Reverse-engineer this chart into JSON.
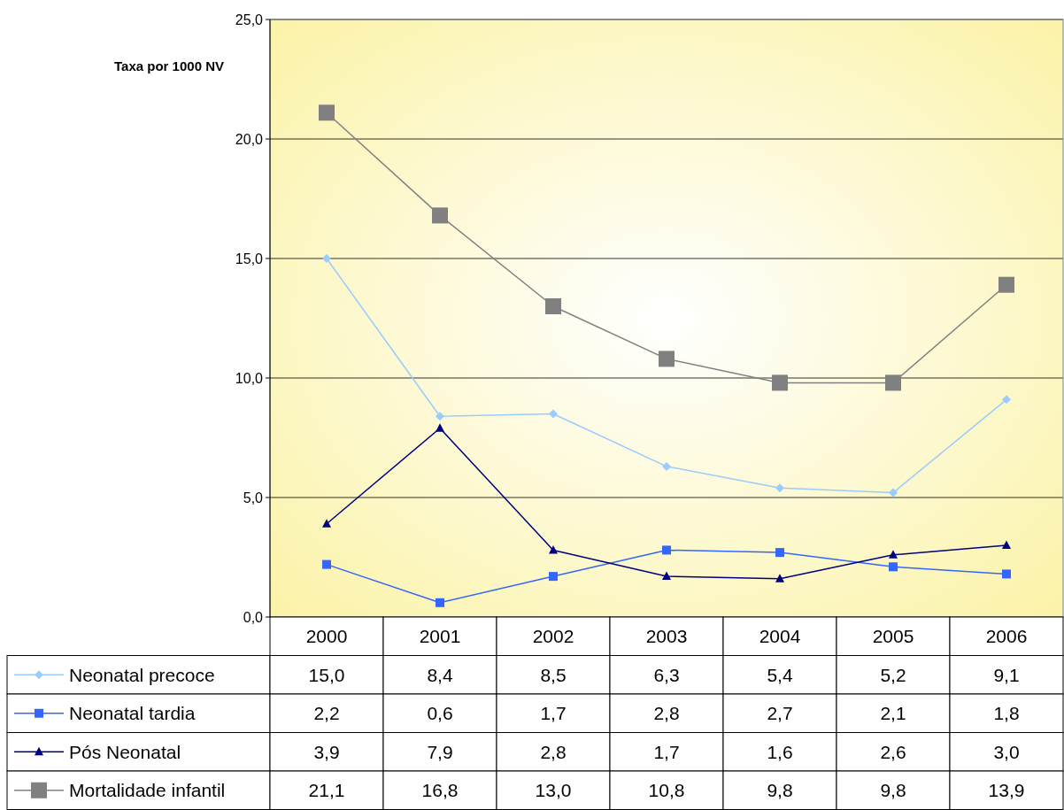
{
  "chart_data": {
    "type": "line",
    "ylabel": "Taxa por 1000 NV",
    "categories": [
      "2000",
      "2001",
      "2002",
      "2003",
      "2004",
      "2005",
      "2006"
    ],
    "ylim": [
      0,
      25
    ],
    "yticks": [
      {
        "value": 0,
        "label": "0,0"
      },
      {
        "value": 5,
        "label": "5,0"
      },
      {
        "value": 10,
        "label": "10,0"
      },
      {
        "value": 15,
        "label": "15,0"
      },
      {
        "value": 20,
        "label": "20,0"
      },
      {
        "value": 25,
        "label": "25,0"
      }
    ],
    "grid": "y",
    "legend": "bottom",
    "series": [
      {
        "name": "Neonatal precoce",
        "color": "#99ccff",
        "marker": "diamond",
        "values": [
          15.0,
          8.4,
          8.5,
          6.3,
          5.4,
          5.2,
          9.1
        ],
        "value_labels": [
          "15,0",
          "8,4",
          "8,5",
          "6,3",
          "5,4",
          "5,2",
          "9,1"
        ]
      },
      {
        "name": "Neonatal tardia",
        "color": "#3366ff",
        "marker": "square",
        "values": [
          2.2,
          0.6,
          1.7,
          2.8,
          2.7,
          2.1,
          1.8
        ],
        "value_labels": [
          "2,2",
          "0,6",
          "1,7",
          "2,8",
          "2,7",
          "2,1",
          "1,8"
        ]
      },
      {
        "name": "Pós Neonatal",
        "color": "#000080",
        "marker": "triangle",
        "values": [
          3.9,
          7.9,
          2.8,
          1.7,
          1.6,
          2.6,
          3.0
        ],
        "value_labels": [
          "3,9",
          "7,9",
          "2,8",
          "1,7",
          "1,6",
          "2,6",
          "3,0"
        ]
      },
      {
        "name": "Mortalidade infantil",
        "color": "#808080",
        "marker": "square",
        "values": [
          21.1,
          16.8,
          13.0,
          10.8,
          9.8,
          9.8,
          13.9
        ],
        "value_labels": [
          "21,1",
          "16,8",
          "13,0",
          "10,8",
          "9,8",
          "9,8",
          "13,9"
        ]
      }
    ]
  }
}
